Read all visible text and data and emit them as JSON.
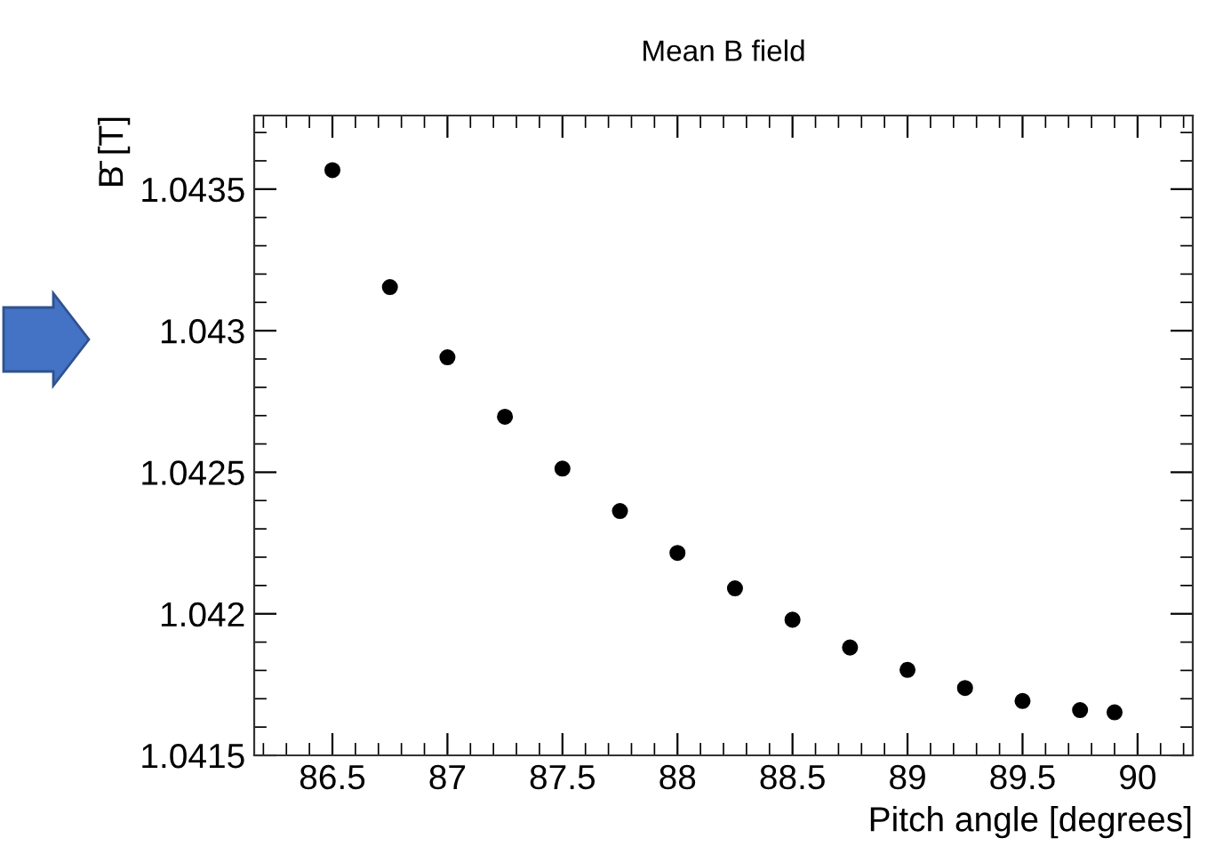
{
  "chart_data": {
    "type": "scatter",
    "title": "Mean B field",
    "xlabel": "Pitch angle [degrees]",
    "ylabel": "B̄ [T]",
    "x": [
      86.5,
      86.75,
      87,
      87.25,
      87.5,
      87.75,
      88,
      88.25,
      88.5,
      88.75,
      89,
      89.25,
      89.5,
      89.75,
      89.9
    ],
    "series": [
      {
        "color": "#000000",
        "values": [
          1.043567,
          1.043154,
          1.042906,
          1.042696,
          1.042513,
          1.042363,
          1.042215,
          1.04209,
          1.041979,
          1.041881,
          1.041802,
          1.041738,
          1.041692,
          1.04166,
          1.041652
        ]
      }
    ],
    "marker": "circle",
    "grid": false,
    "legend": false,
    "xlim": [
      86.16,
      90.24
    ],
    "ylim": [
      1.0415,
      1.04376
    ],
    "xticks": [
      86.5,
      87,
      87.5,
      88,
      88.5,
      89,
      89.5,
      90
    ],
    "yticks": [
      1.0415,
      1.042,
      1.0425,
      1.043,
      1.0435
    ]
  }
}
